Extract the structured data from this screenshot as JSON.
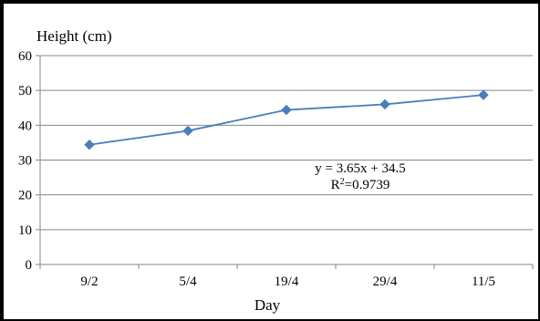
{
  "chart_data": {
    "type": "line",
    "xlabel": "Day",
    "ylabel": "Height (cm)",
    "categories": [
      "9/2",
      "5/4",
      "19/4",
      "29/4",
      "11/5"
    ],
    "series": [
      {
        "values": [
          34.4,
          38.4,
          44.4,
          46.0,
          48.7
        ],
        "color": "#4a7ebb",
        "marker": "diamond"
      }
    ],
    "ylim": [
      0,
      60
    ],
    "yticks": [
      0,
      10,
      20,
      30,
      40,
      50,
      60
    ],
    "grid": "horizontal",
    "legend": "none",
    "annotations": {
      "equation": "y = 3.65x + 34.5",
      "r2_prefix": "R",
      "r2_sup": "2",
      "r2_value": "=0.9739"
    }
  }
}
